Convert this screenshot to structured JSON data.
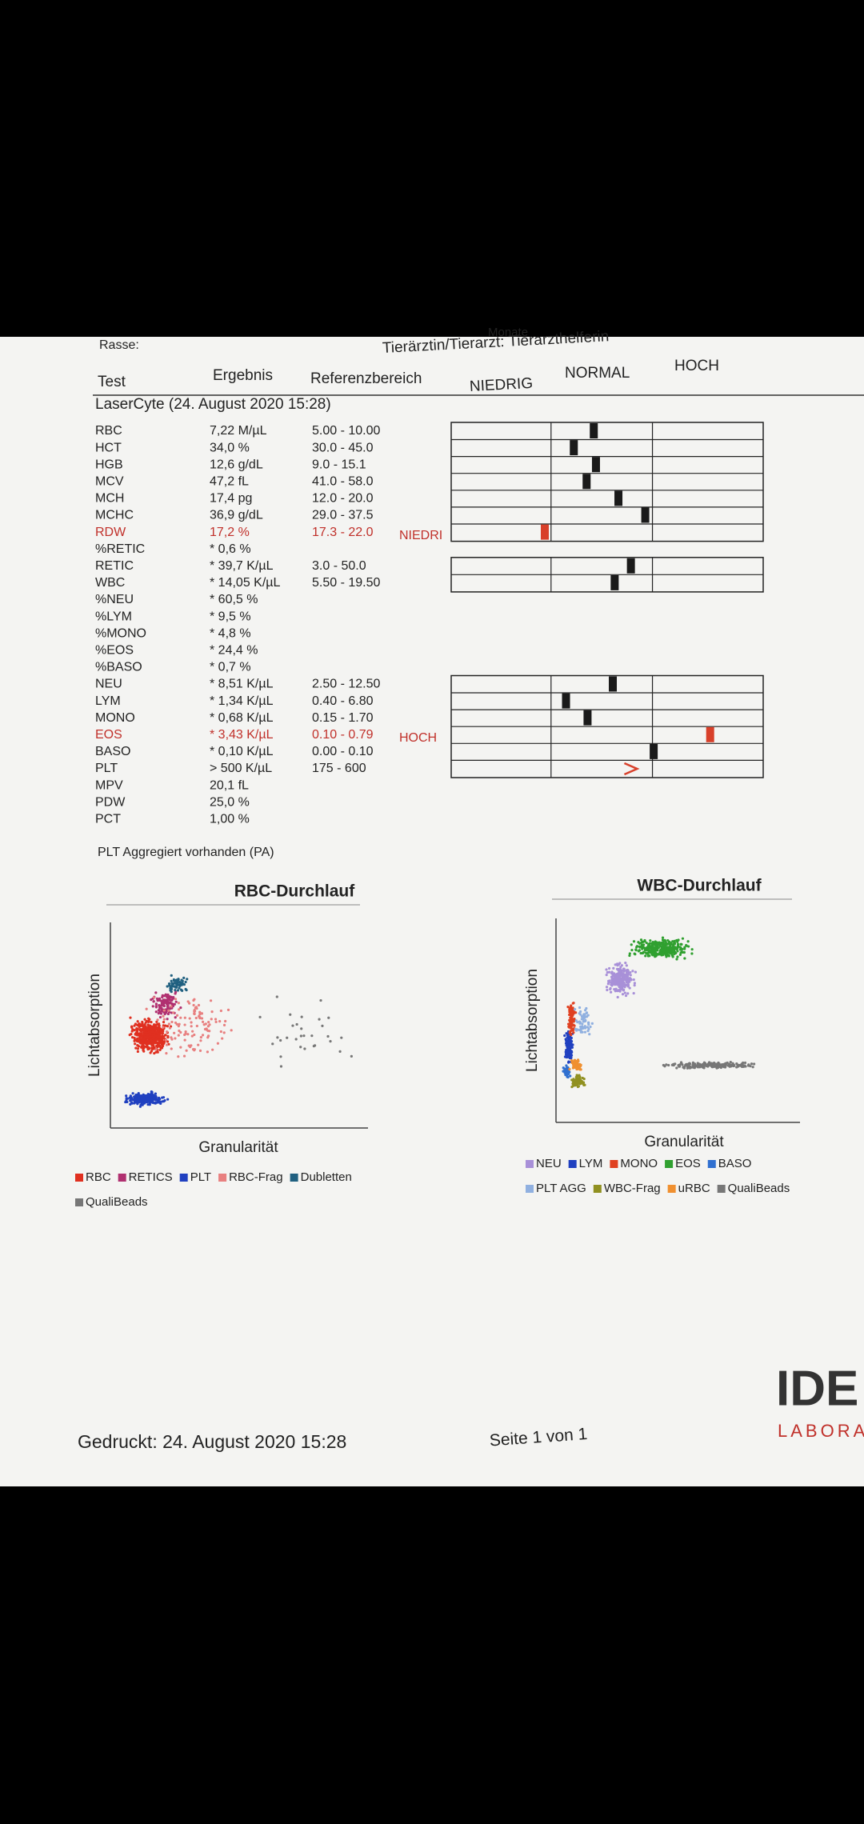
{
  "header": {
    "breed_label": "Rasse:",
    "age_fragment": "Monate",
    "vet": "Tierärztin/Tierarzt: Tierarzthelferin"
  },
  "columns": {
    "test": "Test",
    "result": "Ergebnis",
    "reference": "Referenzbereich"
  },
  "scale": {
    "low": "NIEDRIG",
    "normal": "NORMAL",
    "high": "HOCH"
  },
  "section": "LaserCyte (24. August 2020 15:28)",
  "rows": [
    {
      "test": "RBC",
      "result": "7,22 M/µL",
      "reference": "5.00 - 10.00"
    },
    {
      "test": "HCT",
      "result": "34,0 %",
      "reference": "30.0 - 45.0"
    },
    {
      "test": "HGB",
      "result": "12,6 g/dL",
      "reference": "9.0 - 15.1"
    },
    {
      "test": "MCV",
      "result": "47,2 fL",
      "reference": "41.0 - 58.0"
    },
    {
      "test": "MCH",
      "result": "17,4 pg",
      "reference": "12.0 - 20.0"
    },
    {
      "test": "MCHC",
      "result": "36,9 g/dL",
      "reference": "29.0 - 37.5"
    },
    {
      "test": "RDW",
      "result": "17,2 %",
      "reference": "17.3 - 22.0",
      "flag": "NIEDRI"
    },
    {
      "test": "%RETIC",
      "result": "* 0,6 %"
    },
    {
      "test": "RETIC",
      "result": "* 39,7 K/µL",
      "reference": "3.0 - 50.0"
    },
    {
      "test": "WBC",
      "result": "* 14,05 K/µL",
      "reference": "5.50 - 19.50"
    },
    {
      "test": "%NEU",
      "result": "* 60,5 %"
    },
    {
      "test": "%LYM",
      "result": "* 9,5 %"
    },
    {
      "test": "%MONO",
      "result": "* 4,8 %"
    },
    {
      "test": "%EOS",
      "result": "* 24,4 %"
    },
    {
      "test": "%BASO",
      "result": "* 0,7 %"
    },
    {
      "test": "NEU",
      "result": "* 8,51 K/µL",
      "reference": "2.50 - 12.50"
    },
    {
      "test": "LYM",
      "result": "* 1,34 K/µL",
      "reference": "0.40 - 6.80"
    },
    {
      "test": "MONO",
      "result": "* 0,68 K/µL",
      "reference": "0.15 - 1.70"
    },
    {
      "test": "EOS",
      "result": "* 3,43 K/µL",
      "reference": "0.10 - 0.79",
      "flag": "HOCH"
    },
    {
      "test": "BASO",
      "result": "* 0,10 K/µL",
      "reference": "0.00 - 0.10"
    },
    {
      "test": "PLT",
      "result": "> 500 K/µL",
      "reference": "175 - 600"
    },
    {
      "test": "MPV",
      "result": "20,1 fL"
    },
    {
      "test": "PDW",
      "result": "25,0 %"
    },
    {
      "test": "PCT",
      "result": "1,00 %"
    }
  ],
  "note": "PLT Aggregiert vorhanden (PA)",
  "charts": [
    {
      "title": "RBC-Durchlauf",
      "y_label": "Lichtabsorption",
      "x_label": "Granularität",
      "legend": [
        {
          "name": "RBC",
          "color": "#e03020"
        },
        {
          "name": "RETICS",
          "color": "#b03070"
        },
        {
          "name": "PLT",
          "color": "#2040c0"
        },
        {
          "name": "RBC-Frag",
          "color": "#e88080"
        },
        {
          "name": "Dubletten",
          "color": "#206080"
        },
        {
          "name": "QualiBeads",
          "color": "#777777"
        }
      ]
    },
    {
      "title": "WBC-Durchlauf",
      "y_label": "Lichtabsorption",
      "x_label": "Granularität",
      "legend": [
        {
          "name": "NEU",
          "color": "#a890d8"
        },
        {
          "name": "LYM",
          "color": "#2040c0"
        },
        {
          "name": "MONO",
          "color": "#e04020"
        },
        {
          "name": "EOS",
          "color": "#30a030"
        },
        {
          "name": "BASO",
          "color": "#3070d0"
        },
        {
          "name": "PLT AGG",
          "color": "#90b0e0"
        },
        {
          "name": "WBC-Frag",
          "color": "#909020"
        },
        {
          "name": "uRBC",
          "color": "#f09030"
        },
        {
          "name": "QualiBeads",
          "color": "#777777"
        }
      ]
    }
  ],
  "footer": {
    "printed": "Gedruckt: 24. August 2020 15:28",
    "page": "Seite 1 von 1"
  },
  "logo": {
    "brand": "IDE",
    "sub": "LABORA"
  }
}
